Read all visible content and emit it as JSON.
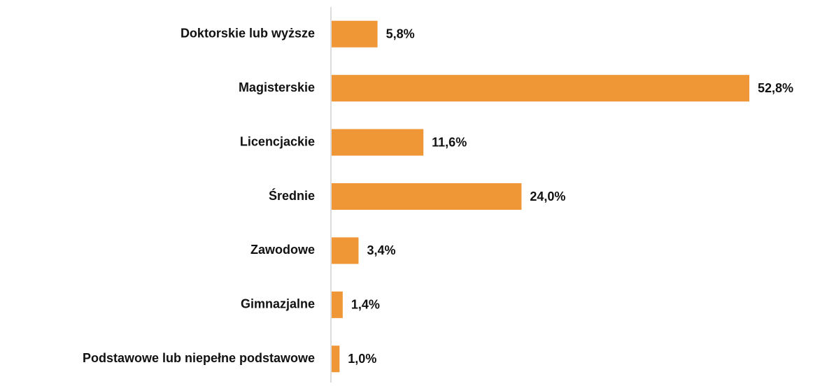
{
  "chart_data": {
    "type": "bar",
    "orientation": "horizontal",
    "categories": [
      "Doktorskie lub wyższe",
      "Magisterskie",
      "Licencjackie",
      "Średnie",
      "Zawodowe",
      "Gimnazjalne",
      "Podstawowe lub niepełne podstawowe"
    ],
    "values": [
      5.8,
      52.8,
      11.6,
      24.0,
      3.4,
      1.4,
      1.0
    ],
    "value_labels": [
      "5,8%",
      "52,8%",
      "11,6%",
      "24,0%",
      "3,4%",
      "1,4%",
      "1,0%"
    ],
    "color": "#ef9637"
  }
}
